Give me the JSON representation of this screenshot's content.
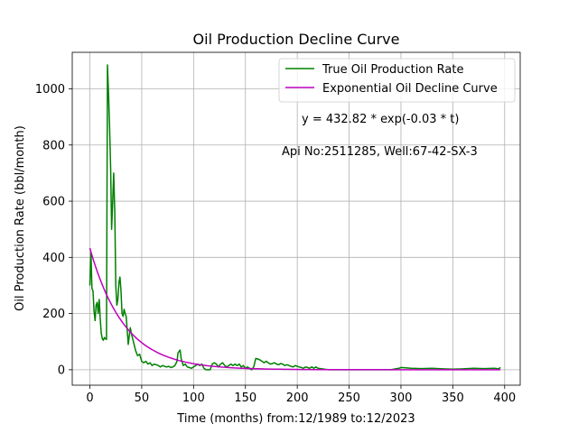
{
  "chart_data": {
    "type": "line",
    "title": "Oil Production Decline Curve",
    "xlabel": "Time (months) from:12/1989 to:12/2023",
    "ylabel": "Oil Production Rate (bbl/month)",
    "xlim": [
      -17,
      415
    ],
    "ylim": [
      -55,
      1130
    ],
    "x_ticks": [
      0,
      50,
      100,
      150,
      200,
      250,
      300,
      350,
      400
    ],
    "y_ticks": [
      0,
      200,
      400,
      600,
      800,
      1000
    ],
    "grid": true,
    "legend_position": "top-right",
    "annotations": [
      "y = 432.82 * exp(-0.03 * t)",
      "Api No:2511285, Well:67-42-SX-3"
    ],
    "series": [
      {
        "name": "True Oil Production Rate",
        "color": "#008000",
        "x": [
          0,
          1,
          2,
          3,
          4,
          5,
          6,
          7,
          8,
          9,
          10,
          11,
          12,
          13,
          14,
          15,
          16,
          17,
          18,
          19,
          20,
          21,
          22,
          23,
          24,
          25,
          26,
          27,
          28,
          29,
          30,
          31,
          32,
          33,
          34,
          35,
          36,
          37,
          38,
          39,
          40,
          42,
          44,
          46,
          48,
          50,
          52,
          54,
          56,
          58,
          60,
          62,
          64,
          66,
          68,
          70,
          72,
          74,
          76,
          78,
          80,
          82,
          84,
          85,
          86,
          87,
          88,
          90,
          92,
          94,
          96,
          98,
          100,
          102,
          104,
          106,
          108,
          110,
          112,
          114,
          116,
          118,
          120,
          122,
          124,
          126,
          128,
          130,
          132,
          134,
          136,
          138,
          140,
          142,
          144,
          146,
          148,
          150,
          152,
          154,
          156,
          158,
          160,
          162,
          164,
          166,
          168,
          170,
          172,
          174,
          176,
          178,
          180,
          182,
          184,
          186,
          188,
          190,
          192,
          194,
          196,
          198,
          200,
          202,
          204,
          206,
          208,
          210,
          212,
          214,
          216,
          218,
          220,
          230,
          250,
          270,
          290,
          298,
          300,
          310,
          320,
          330,
          340,
          350,
          360,
          370,
          380,
          390,
          394,
          396
        ],
        "y": [
          300,
          420,
          290,
          280,
          210,
          175,
          230,
          240,
          200,
          250,
          180,
          130,
          110,
          105,
          115,
          110,
          108,
          1085,
          980,
          870,
          720,
          500,
          600,
          700,
          560,
          300,
          230,
          250,
          310,
          330,
          280,
          200,
          190,
          215,
          200,
          190,
          140,
          90,
          120,
          150,
          130,
          100,
          70,
          50,
          55,
          30,
          25,
          30,
          20,
          25,
          15,
          20,
          18,
          15,
          10,
          15,
          12,
          10,
          12,
          8,
          10,
          15,
          30,
          60,
          65,
          70,
          40,
          15,
          20,
          10,
          8,
          5,
          10,
          15,
          20,
          15,
          20,
          5,
          0,
          0,
          0,
          20,
          25,
          20,
          10,
          20,
          25,
          15,
          10,
          15,
          20,
          15,
          20,
          15,
          20,
          10,
          15,
          5,
          10,
          5,
          0,
          10,
          40,
          38,
          35,
          30,
          25,
          30,
          25,
          20,
          22,
          25,
          20,
          18,
          22,
          20,
          15,
          18,
          15,
          12,
          10,
          15,
          12,
          10,
          8,
          5,
          10,
          8,
          5,
          10,
          5,
          10,
          5,
          0,
          0,
          0,
          0,
          5,
          8,
          5,
          4,
          5,
          3,
          2,
          3,
          5,
          4,
          5,
          3,
          8
        ]
      },
      {
        "name": "Exponential Oil Decline Curve",
        "color": "#bf00bf",
        "formula": {
          "a": 432.82,
          "b": 0.03,
          "t_start": 0,
          "t_end": 396
        }
      }
    ]
  }
}
